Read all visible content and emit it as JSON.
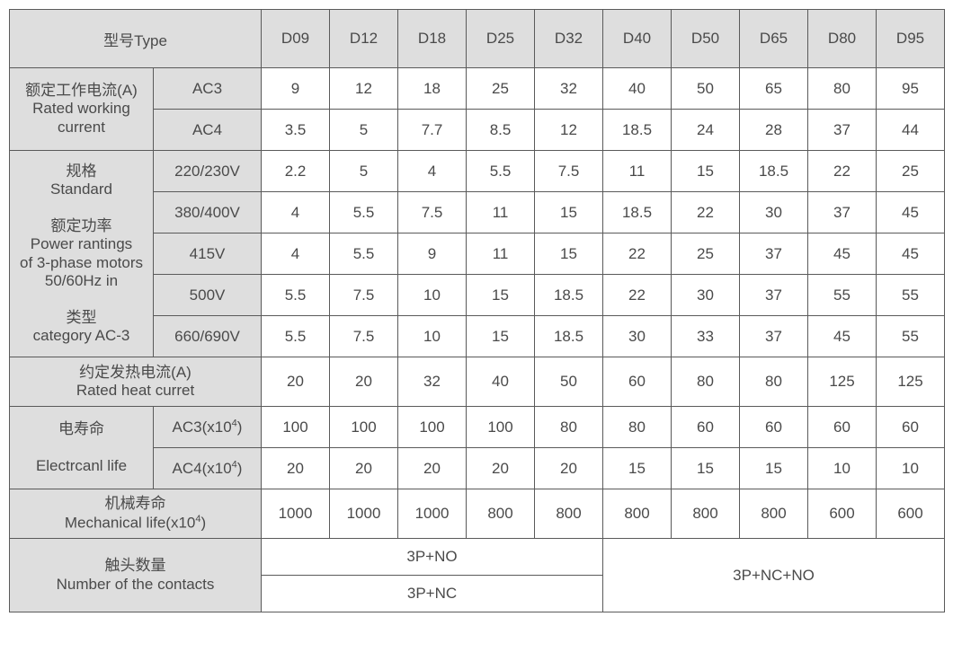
{
  "colors": {
    "border": "#5a5a5a",
    "header_bg": "#dedede",
    "text": "#4a4a4a",
    "bg": "#ffffff"
  },
  "col_widths": {
    "label1": 160,
    "label2": 120,
    "data": 76
  },
  "header": {
    "type_label": "型号Type",
    "cols": [
      "D09",
      "D12",
      "D18",
      "D25",
      "D32",
      "D40",
      "D50",
      "D65",
      "D80",
      "D95"
    ]
  },
  "rows": {
    "rated_working_current": {
      "label_cn": "额定工作电流(A)",
      "label_en": "Rated  working current",
      "sub": [
        {
          "k": "AC3",
          "v": [
            "9",
            "12",
            "18",
            "25",
            "32",
            "40",
            "50",
            "65",
            "80",
            "95"
          ]
        },
        {
          "k": "AC4",
          "v": [
            "3.5",
            "5",
            "7.7",
            "8.5",
            "12",
            "18.5",
            "24",
            "28",
            "37",
            "44"
          ]
        }
      ]
    },
    "power_ratings": {
      "label_lines": [
        "规格",
        "Standard",
        "",
        "额定功率",
        "Power rantings",
        "of 3-phase motors",
        "50/60Hz in",
        "",
        "类型",
        "category AC-3"
      ],
      "sub": [
        {
          "k": "220/230V",
          "v": [
            "2.2",
            "5",
            "4",
            "5.5",
            "7.5",
            "11",
            "15",
            "18.5",
            "22",
            "25"
          ]
        },
        {
          "k": "380/400V",
          "v": [
            "4",
            "5.5",
            "7.5",
            "11",
            "15",
            "18.5",
            "22",
            "30",
            "37",
            "45"
          ]
        },
        {
          "k": "415V",
          "v": [
            "4",
            "5.5",
            "9",
            "11",
            "15",
            "22",
            "25",
            "37",
            "45",
            "45"
          ]
        },
        {
          "k": "500V",
          "v": [
            "5.5",
            "7.5",
            "10",
            "15",
            "18.5",
            "22",
            "30",
            "37",
            "55",
            "55"
          ]
        },
        {
          "k": "660/690V",
          "v": [
            "5.5",
            "7.5",
            "10",
            "15",
            "18.5",
            "30",
            "33",
            "37",
            "45",
            "55"
          ]
        }
      ]
    },
    "rated_heat": {
      "label_cn": "约定发热电流(A)",
      "label_en": "Rated heat curret",
      "v": [
        "20",
        "20",
        "32",
        "40",
        "50",
        "60",
        "80",
        "80",
        "125",
        "125"
      ]
    },
    "electrical_life": {
      "label_cn": "电寿命",
      "label_en": "Electrcanl life",
      "sub": [
        {
          "k": "AC3(x10⁴)",
          "k_html": "AC3(x10<sup>4</sup>)",
          "v": [
            "100",
            "100",
            "100",
            "100",
            "80",
            "80",
            "60",
            "60",
            "60",
            "60"
          ]
        },
        {
          "k": "AC4(x10⁴)",
          "k_html": "AC4(x10<sup>4</sup>)",
          "v": [
            "20",
            "20",
            "20",
            "20",
            "20",
            "15",
            "15",
            "15",
            "10",
            "10"
          ]
        }
      ]
    },
    "mechanical_life": {
      "label_cn": "机械寿命",
      "label_en": "Mechanical life(x10⁴)",
      "label_en_html": "Mechanical life(x10<sup>4</sup>)",
      "v": [
        "1000",
        "1000",
        "1000",
        "800",
        "800",
        "800",
        "800",
        "800",
        "600",
        "600"
      ]
    },
    "contacts": {
      "label_cn": "触头数量",
      "label_en": "Number of the contacts",
      "left_top": "3P+NO",
      "left_bottom": "3P+NC",
      "right": "3P+NC+NO"
    }
  }
}
